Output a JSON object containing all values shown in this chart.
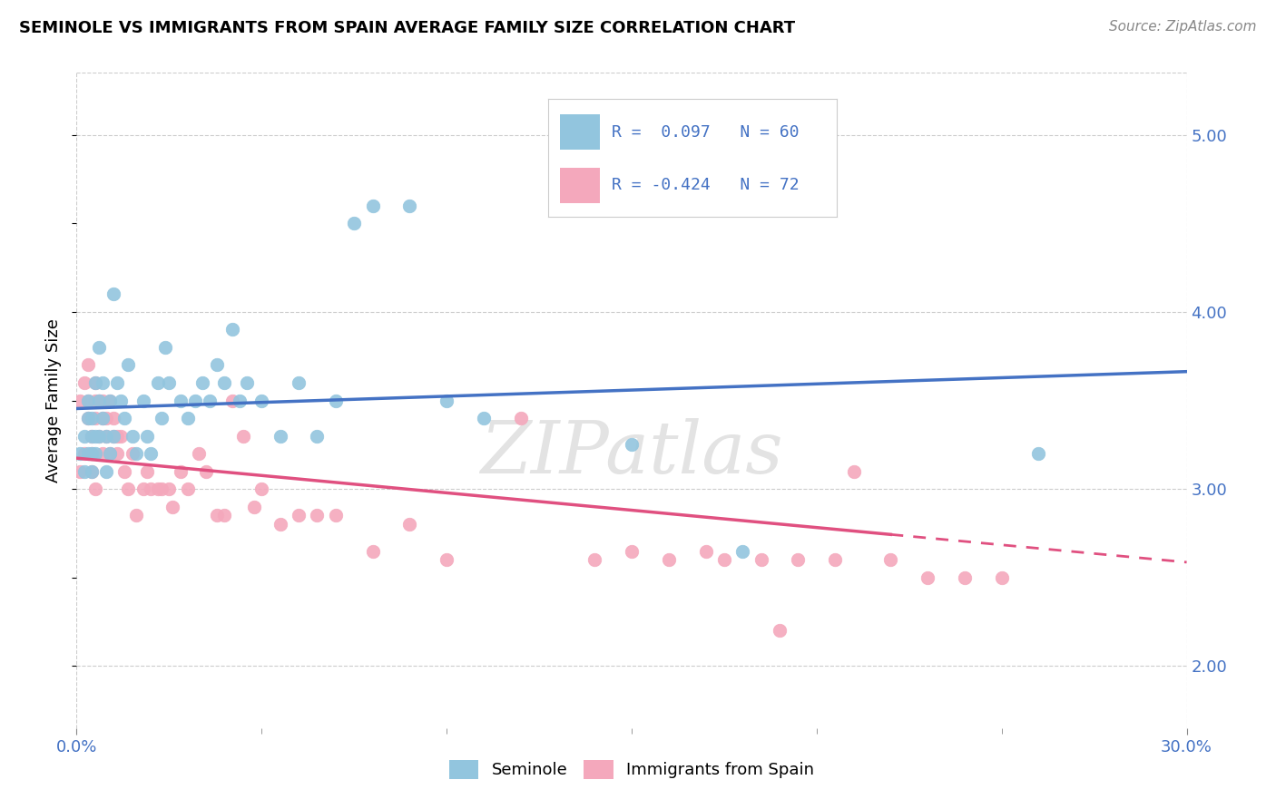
{
  "title": "SEMINOLE VS IMMIGRANTS FROM SPAIN AVERAGE FAMILY SIZE CORRELATION CHART",
  "source": "Source: ZipAtlas.com",
  "ylabel": "Average Family Size",
  "yticks": [
    2.0,
    3.0,
    4.0,
    5.0
  ],
  "xlim": [
    0.0,
    0.3
  ],
  "ylim": [
    1.65,
    5.35
  ],
  "seminole_R": 0.097,
  "seminole_N": 60,
  "spain_R": -0.424,
  "spain_N": 72,
  "seminole_color": "#92C5DE",
  "spain_color": "#F4A8BC",
  "seminole_line_color": "#4472C4",
  "spain_line_color": "#E05080",
  "legend_color": "#4472C4",
  "watermark": "ZIPatlas",
  "seminole_x": [
    0.001,
    0.002,
    0.002,
    0.003,
    0.003,
    0.003,
    0.004,
    0.004,
    0.004,
    0.004,
    0.005,
    0.005,
    0.005,
    0.006,
    0.006,
    0.006,
    0.007,
    0.007,
    0.008,
    0.008,
    0.009,
    0.009,
    0.01,
    0.01,
    0.011,
    0.012,
    0.013,
    0.014,
    0.015,
    0.016,
    0.018,
    0.019,
    0.02,
    0.022,
    0.023,
    0.024,
    0.025,
    0.028,
    0.03,
    0.032,
    0.034,
    0.036,
    0.038,
    0.04,
    0.042,
    0.044,
    0.046,
    0.05,
    0.055,
    0.06,
    0.065,
    0.07,
    0.075,
    0.08,
    0.09,
    0.1,
    0.11,
    0.15,
    0.18,
    0.26
  ],
  "seminole_y": [
    3.2,
    3.3,
    3.1,
    3.5,
    3.2,
    3.4,
    3.3,
    3.1,
    3.2,
    3.4,
    3.6,
    3.3,
    3.2,
    3.8,
    3.5,
    3.3,
    3.4,
    3.6,
    3.1,
    3.3,
    3.2,
    3.5,
    4.1,
    3.3,
    3.6,
    3.5,
    3.4,
    3.7,
    3.3,
    3.2,
    3.5,
    3.3,
    3.2,
    3.6,
    3.4,
    3.8,
    3.6,
    3.5,
    3.4,
    3.5,
    3.6,
    3.5,
    3.7,
    3.6,
    3.9,
    3.5,
    3.6,
    3.5,
    3.3,
    3.6,
    3.3,
    3.5,
    4.5,
    4.6,
    4.6,
    3.5,
    3.4,
    3.25,
    2.65,
    3.2
  ],
  "spain_x": [
    0.001,
    0.001,
    0.002,
    0.002,
    0.003,
    0.003,
    0.003,
    0.004,
    0.004,
    0.004,
    0.005,
    0.005,
    0.005,
    0.005,
    0.006,
    0.006,
    0.006,
    0.007,
    0.007,
    0.007,
    0.008,
    0.008,
    0.009,
    0.009,
    0.01,
    0.01,
    0.011,
    0.011,
    0.012,
    0.013,
    0.014,
    0.015,
    0.016,
    0.018,
    0.019,
    0.02,
    0.022,
    0.023,
    0.025,
    0.026,
    0.028,
    0.03,
    0.033,
    0.035,
    0.038,
    0.04,
    0.042,
    0.045,
    0.048,
    0.05,
    0.055,
    0.06,
    0.065,
    0.07,
    0.08,
    0.09,
    0.1,
    0.12,
    0.15,
    0.17,
    0.19,
    0.21,
    0.14,
    0.16,
    0.175,
    0.185,
    0.195,
    0.205,
    0.22,
    0.25,
    0.24,
    0.23
  ],
  "spain_y": [
    3.1,
    3.5,
    3.6,
    3.2,
    3.4,
    3.5,
    3.7,
    3.3,
    3.1,
    3.2,
    3.4,
    3.5,
    3.6,
    3.0,
    3.5,
    3.3,
    3.5,
    3.2,
    3.5,
    3.4,
    3.3,
    3.4,
    3.5,
    3.2,
    3.3,
    3.4,
    3.2,
    3.3,
    3.3,
    3.1,
    3.0,
    3.2,
    2.85,
    3.0,
    3.1,
    3.0,
    3.0,
    3.0,
    3.0,
    2.9,
    3.1,
    3.0,
    3.2,
    3.1,
    2.85,
    2.85,
    3.5,
    3.3,
    2.9,
    3.0,
    2.8,
    2.85,
    2.85,
    2.85,
    2.65,
    2.8,
    2.6,
    3.4,
    2.65,
    2.65,
    2.2,
    3.1,
    2.6,
    2.6,
    2.6,
    2.6,
    2.6,
    2.6,
    2.6,
    2.5,
    2.5,
    2.5
  ]
}
